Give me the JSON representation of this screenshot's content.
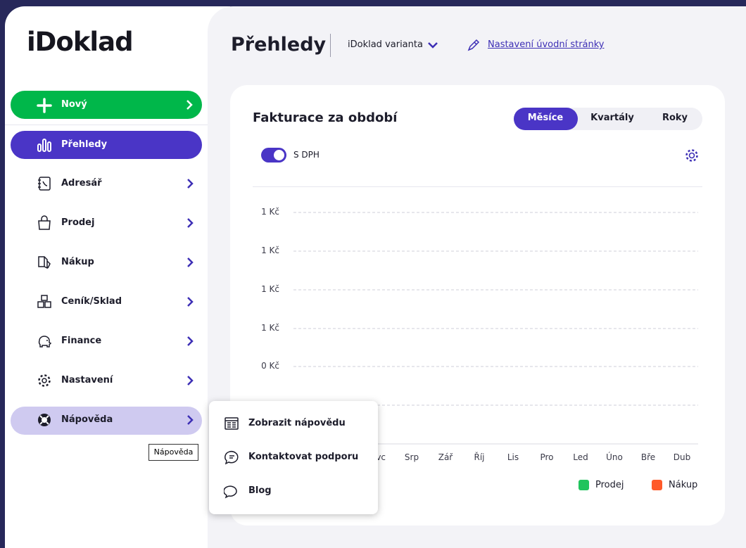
{
  "logo": "iDoklad",
  "sidebar": {
    "new_button": "Nový",
    "active": "Přehledy",
    "items": [
      "Adresář",
      "Prodej",
      "Nákup",
      "Ceník/Sklad",
      "Finance",
      "Nastavení",
      "Nápověda"
    ],
    "tooltip": "Nápověda"
  },
  "header": {
    "title": "Přehledy",
    "variant": "iDoklad varianta",
    "settings_link": "Nastavení úvodní stránky"
  },
  "card": {
    "title": "Fakturace za období",
    "tabs": [
      "Měsíce",
      "Kvartály",
      "Roky"
    ],
    "toggle_label": "S DPH",
    "y_labels": [
      "1 Kč",
      "1 Kč",
      "1 Kč",
      "1 Kč",
      "0 Kč"
    ],
    "x_labels": [
      "Čvc",
      "Srp",
      "Zář",
      "Říj",
      "Lis",
      "Pro",
      "Led",
      "Úno",
      "Bře",
      "Dub"
    ],
    "legend": [
      "Prodej",
      "Nákup"
    ]
  },
  "help_menu": [
    "Zobrazit nápovědu",
    "Kontaktovat podporu",
    "Blog"
  ]
}
